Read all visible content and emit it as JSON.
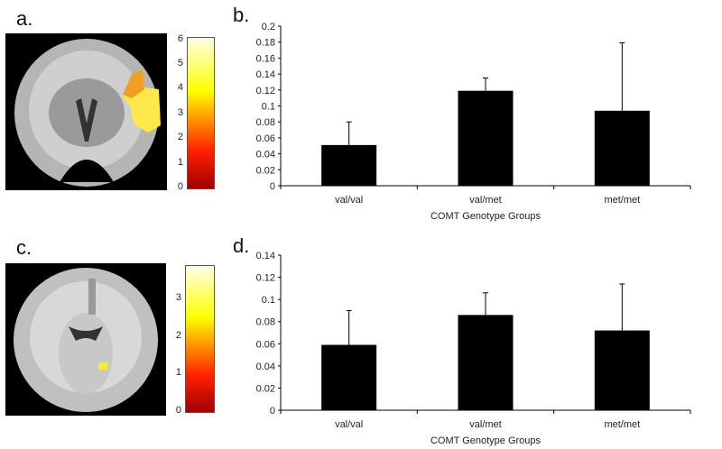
{
  "panels": {
    "a": {
      "label": "a.",
      "colorbar_ticks": [
        "0",
        "1",
        "2",
        "3",
        "4",
        "5",
        "6"
      ],
      "colorbar_max": 6.1
    },
    "b": {
      "label": "b."
    },
    "c": {
      "label": "c.",
      "colorbar_ticks": [
        "0",
        "1",
        "2",
        "3"
      ],
      "colorbar_max": 3.9
    },
    "d": {
      "label": "d."
    }
  },
  "colors": {
    "bar": "#000000",
    "activation_a": "#ffe84a",
    "activation_c": "#f5f020"
  },
  "chart_data": [
    {
      "id": "b",
      "type": "bar",
      "title": "",
      "xlabel": "COMT Genotype Groups",
      "ylabel": "",
      "categories": [
        "val/val",
        "val/met",
        "met/met"
      ],
      "values": [
        0.051,
        0.119,
        0.094
      ],
      "error_upper": [
        0.08,
        0.135,
        0.179
      ],
      "ylim": [
        0,
        0.2
      ],
      "yticks": [
        "0",
        "0.02",
        "0.04",
        "0.06",
        "0.08",
        "0.1",
        "0.12",
        "0.14",
        "0.16",
        "0.18",
        "0.2"
      ],
      "grid": false
    },
    {
      "id": "d",
      "type": "bar",
      "title": "",
      "xlabel": "COMT Genotype Groups",
      "ylabel": "",
      "categories": [
        "val/val",
        "val/met",
        "met/met"
      ],
      "values": [
        0.059,
        0.086,
        0.072
      ],
      "error_upper": [
        0.09,
        0.106,
        0.114
      ],
      "ylim": [
        0,
        0.14
      ],
      "yticks": [
        "0",
        "0.02",
        "0.04",
        "0.06",
        "0.08",
        "0.1",
        "0.12",
        "0.14"
      ],
      "grid": false
    }
  ]
}
